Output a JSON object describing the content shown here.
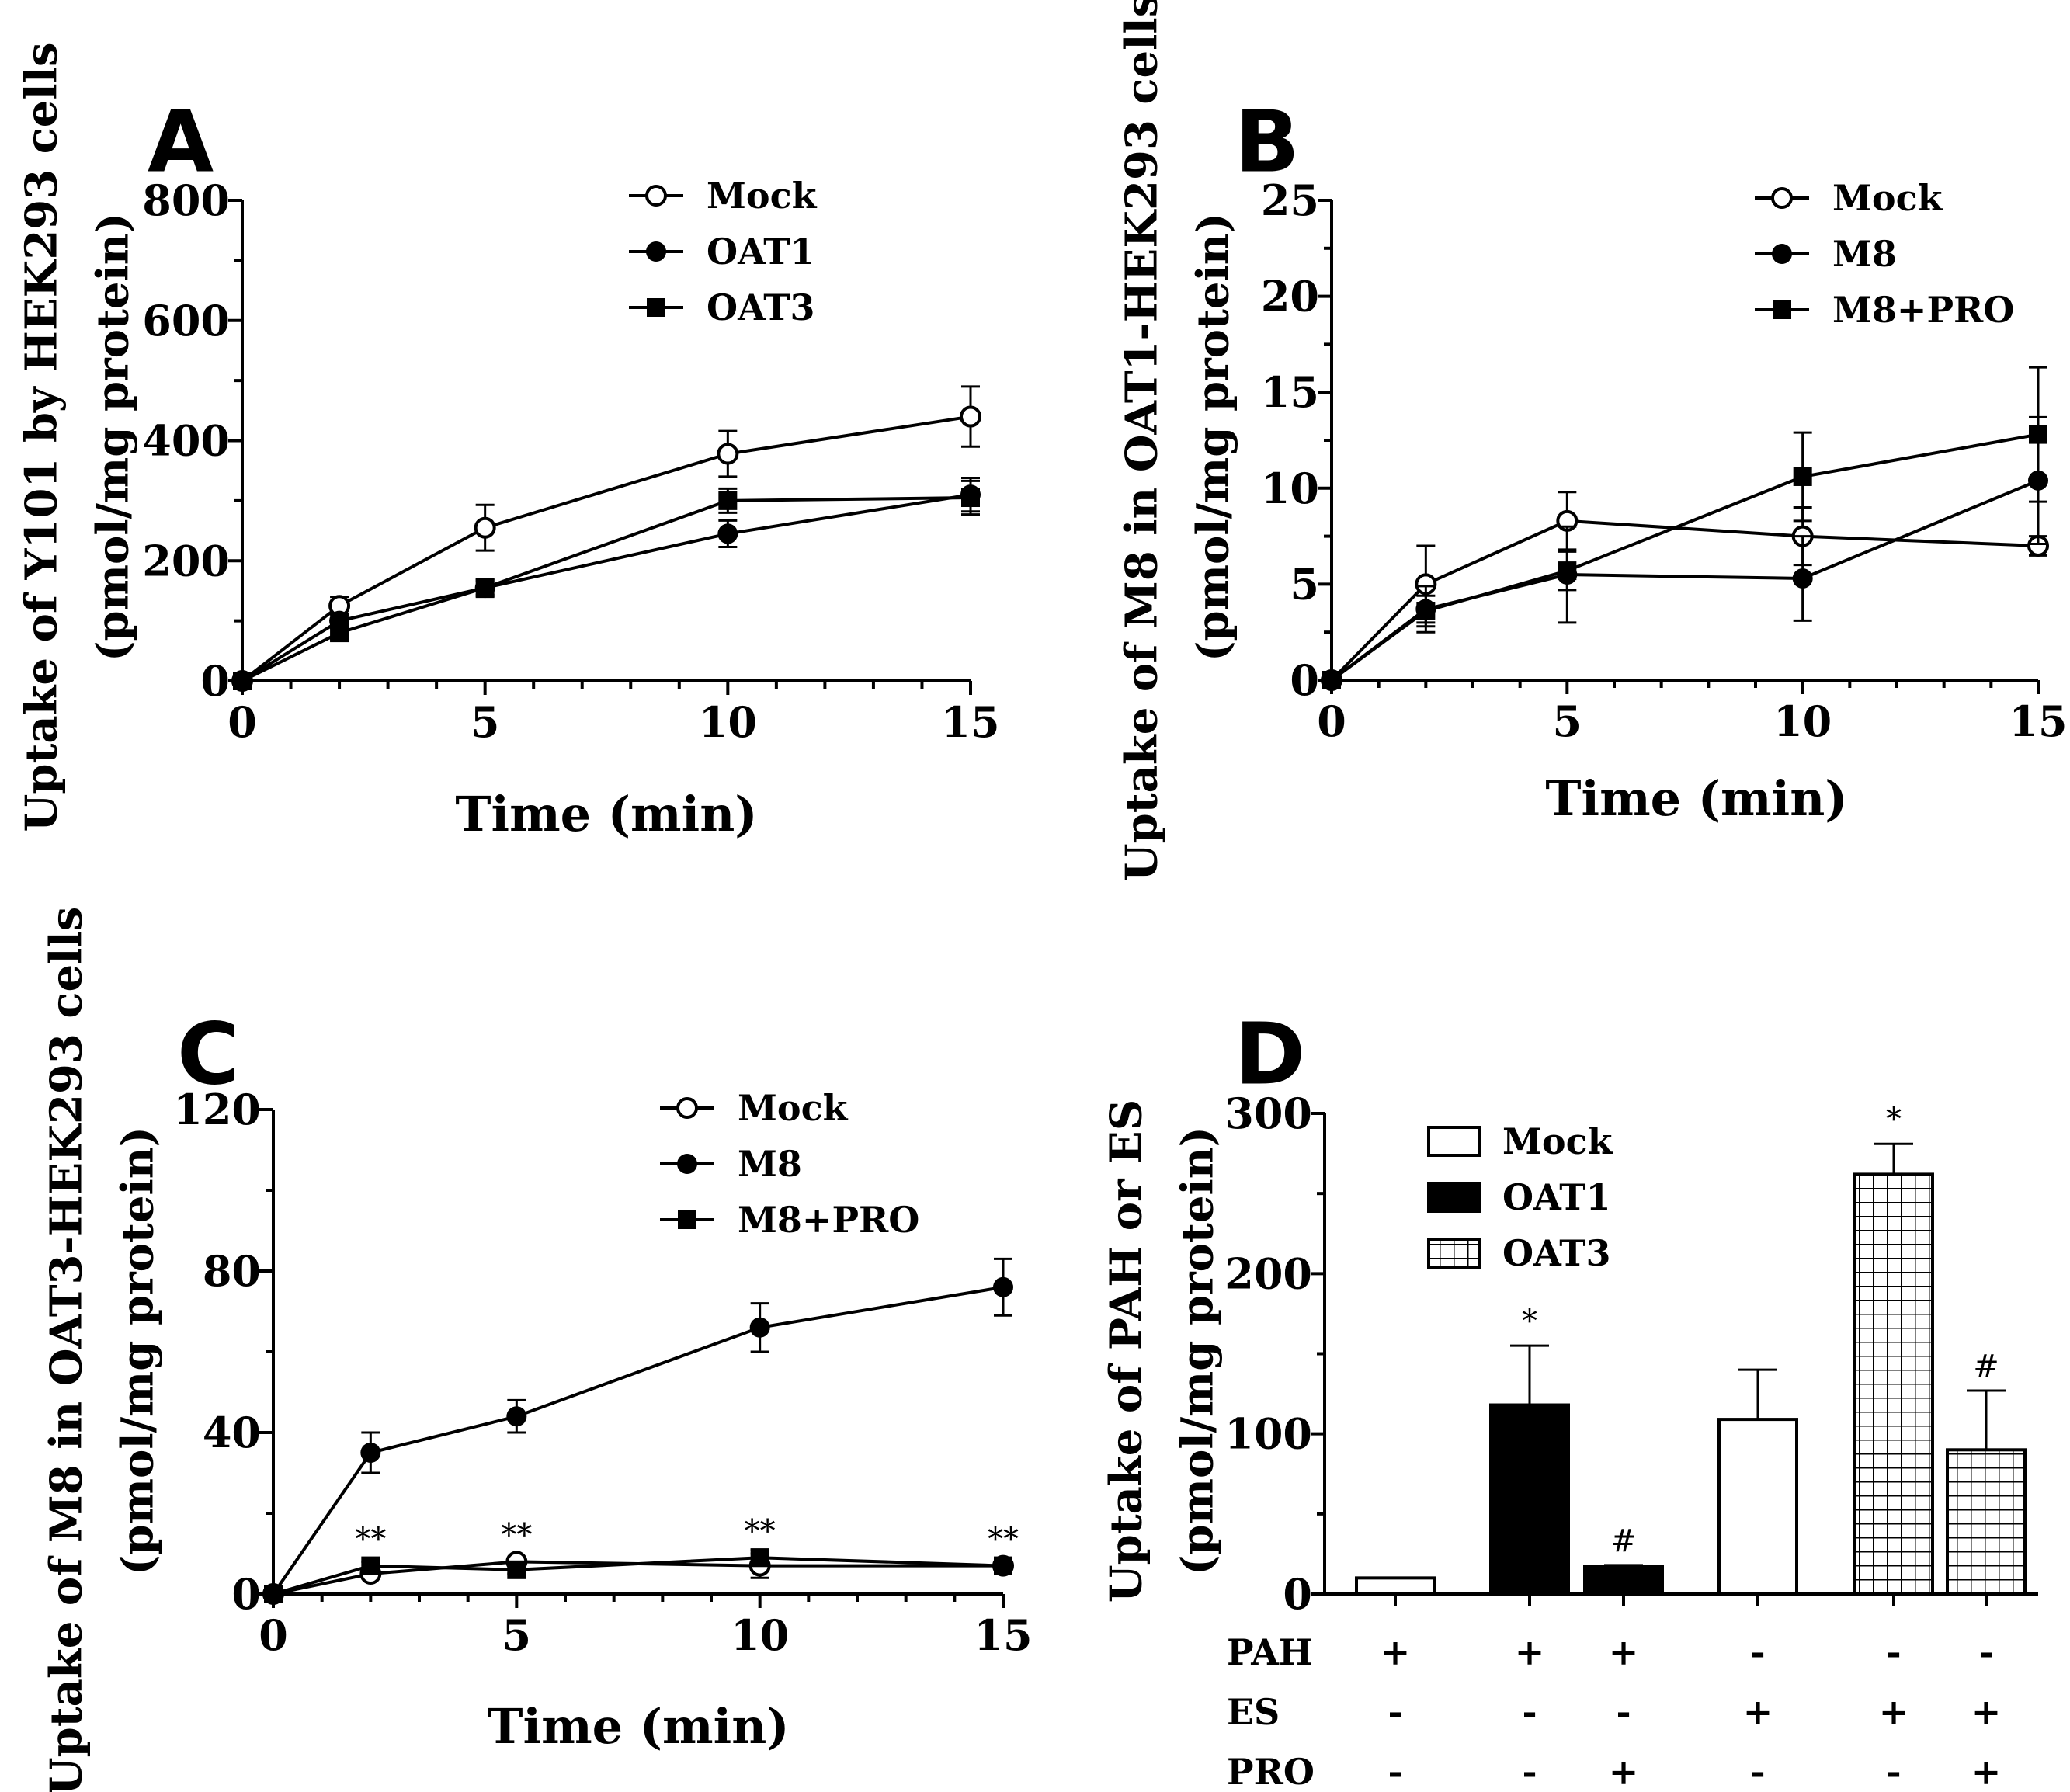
{
  "chart_data": [
    {
      "panel": "A",
      "type": "line",
      "xlabel": "Time (min)",
      "ylabel_line1": "Uptake of Y101 by HEK293 cells",
      "ylabel_line2": "(pmol/mg protein)",
      "xlim": [
        0,
        15
      ],
      "ylim": [
        0,
        800
      ],
      "xticks": [
        0,
        5,
        10,
        15
      ],
      "yticks": [
        0,
        200,
        400,
        600,
        800
      ],
      "series": [
        {
          "name": "Mock",
          "marker": "open-circle",
          "x": [
            0,
            2,
            5,
            10,
            15
          ],
          "y": [
            0,
            125,
            255,
            378,
            440
          ],
          "err": [
            0,
            15,
            38,
            38,
            50
          ]
        },
        {
          "name": "OAT1",
          "marker": "filled-circle",
          "x": [
            0,
            2,
            5,
            10,
            15
          ],
          "y": [
            0,
            100,
            155,
            245,
            310
          ],
          "err": [
            0,
            12,
            15,
            22,
            28
          ]
        },
        {
          "name": "OAT3",
          "marker": "filled-square",
          "x": [
            0,
            2,
            5,
            10,
            15
          ],
          "y": [
            0,
            80,
            155,
            300,
            305
          ],
          "err": [
            0,
            10,
            12,
            20,
            28
          ]
        }
      ]
    },
    {
      "panel": "B",
      "type": "line",
      "xlabel": "Time (min)",
      "ylabel_line1": "Uptake of M8 in OAT1-HEK293 cells",
      "ylabel_line2": "(pmol/mg protein)",
      "xlim": [
        0,
        15
      ],
      "ylim": [
        0,
        25
      ],
      "xticks": [
        0,
        5,
        10,
        15
      ],
      "yticks": [
        0,
        5,
        10,
        15,
        20,
        25
      ],
      "series": [
        {
          "name": "Mock",
          "marker": "open-circle",
          "x": [
            0,
            2,
            5,
            10,
            15
          ],
          "y": [
            0,
            5.0,
            8.3,
            7.5,
            7.0
          ],
          "err": [
            0,
            2.0,
            1.5,
            1.5,
            0.5
          ]
        },
        {
          "name": "M8",
          "marker": "filled-circle",
          "x": [
            0,
            2,
            5,
            10,
            15
          ],
          "y": [
            0,
            3.7,
            5.5,
            5.3,
            10.4
          ],
          "err": [
            0,
            1.2,
            2.5,
            2.2,
            3.3
          ]
        },
        {
          "name": "M8+PRO",
          "marker": "filled-square",
          "x": [
            0,
            2,
            5,
            10,
            15
          ],
          "y": [
            0,
            3.6,
            5.7,
            10.6,
            12.8
          ],
          "err": [
            0,
            0.8,
            1.0,
            2.3,
            3.5
          ]
        }
      ]
    },
    {
      "panel": "C",
      "type": "line",
      "xlabel": "Time (min)",
      "ylabel_line1": "Uptake of M8 in OAT3-HEK293 cells",
      "ylabel_line2": "(pmol/mg protein)",
      "xlim": [
        0,
        15
      ],
      "ylim": [
        0,
        120
      ],
      "xticks": [
        0,
        5,
        10,
        15
      ],
      "yticks": [
        0,
        40,
        80,
        120
      ],
      "annotations": [
        {
          "x": 2,
          "y": 11,
          "text": "**"
        },
        {
          "x": 5,
          "y": 12,
          "text": "**"
        },
        {
          "x": 10,
          "y": 13,
          "text": "**"
        },
        {
          "x": 15,
          "y": 11,
          "text": "**"
        }
      ],
      "series": [
        {
          "name": "Mock",
          "marker": "open-circle",
          "x": [
            0,
            2,
            5,
            10,
            15
          ],
          "y": [
            0,
            5,
            8,
            7,
            7
          ],
          "err": [
            0,
            1,
            1,
            3,
            1
          ]
        },
        {
          "name": "M8",
          "marker": "filled-circle",
          "x": [
            0,
            2,
            5,
            10,
            15
          ],
          "y": [
            0,
            35,
            44,
            66,
            76
          ],
          "err": [
            0,
            5,
            4,
            6,
            7
          ]
        },
        {
          "name": "M8+PRO",
          "marker": "filled-square",
          "x": [
            0,
            2,
            5,
            10,
            15
          ],
          "y": [
            0,
            7,
            6,
            9,
            7
          ],
          "err": [
            0,
            1,
            1,
            2,
            1
          ]
        }
      ]
    },
    {
      "panel": "D",
      "type": "bar",
      "ylabel_line1": "Uptake of PAH or ES",
      "ylabel_line2": "(pmol/mg protein)",
      "ylim": [
        0,
        300
      ],
      "yticks": [
        0,
        100,
        200,
        300
      ],
      "legend": [
        {
          "name": "Mock",
          "fill": "white"
        },
        {
          "name": "OAT1",
          "fill": "black"
        },
        {
          "name": "OAT3",
          "fill": "grid"
        }
      ],
      "bars": [
        {
          "group": "Mock",
          "fill": "white",
          "value": 10,
          "err": 0,
          "mark": ""
        },
        {
          "group": "OAT1",
          "fill": "black",
          "value": 118,
          "err": 37,
          "mark": "*"
        },
        {
          "group": "OAT1",
          "fill": "black",
          "value": 17,
          "err": 1,
          "mark": "#"
        },
        {
          "group": "Mock",
          "fill": "white",
          "value": 109,
          "err": 31,
          "mark": ""
        },
        {
          "group": "OAT3",
          "fill": "grid",
          "value": 262,
          "err": 19,
          "mark": "*"
        },
        {
          "group": "OAT3",
          "fill": "grid",
          "value": 90,
          "err": 37,
          "mark": "#"
        }
      ],
      "conditions": [
        {
          "label": "PAH",
          "values": [
            "+",
            "+",
            "+",
            "-",
            "-",
            "-"
          ]
        },
        {
          "label": "ES",
          "values": [
            "-",
            "-",
            "-",
            "+",
            "+",
            "+"
          ]
        },
        {
          "label": "PRO",
          "values": [
            "-",
            "-",
            "+",
            "-",
            "-",
            "+"
          ]
        }
      ]
    }
  ]
}
